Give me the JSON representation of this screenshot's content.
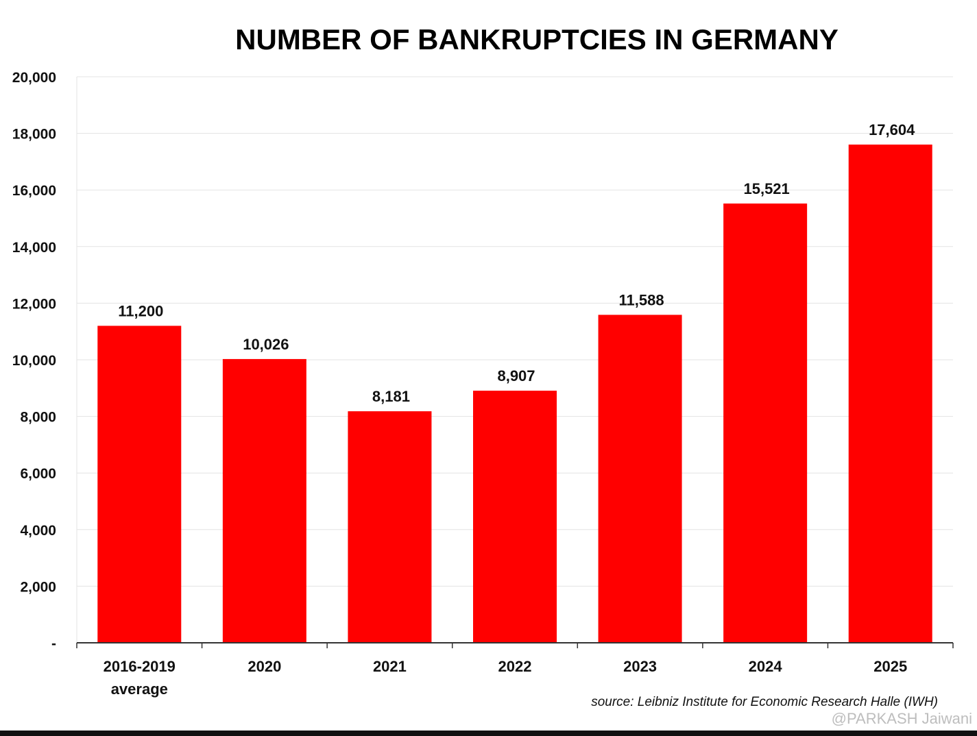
{
  "chart_data": {
    "type": "bar",
    "title": "NUMBER OF BANKRUPTCIES IN GERMANY",
    "xlabel": "",
    "ylabel": "",
    "ylim": [
      0,
      20000
    ],
    "categories": [
      "2016-2019 average",
      "2020",
      "2021",
      "2022",
      "2023",
      "2024",
      "2025"
    ],
    "category_lines": [
      [
        "2016-2019",
        "average"
      ],
      [
        "2020"
      ],
      [
        "2021"
      ],
      [
        "2022"
      ],
      [
        "2023"
      ],
      [
        "2024"
      ],
      [
        "2025"
      ]
    ],
    "values": [
      11200,
      10026,
      8181,
      8907,
      11588,
      15521,
      17604
    ],
    "value_labels": [
      "11,200",
      "10,026",
      "8,181",
      "8,907",
      "11,588",
      "15,521",
      "17,604"
    ],
    "y_ticks": [
      0,
      2000,
      4000,
      6000,
      8000,
      10000,
      12000,
      14000,
      16000,
      18000,
      20000
    ],
    "y_tick_labels": [
      "-",
      "2,000",
      "4,000",
      "6,000",
      "8,000",
      "10,000",
      "12,000",
      "14,000",
      "16,000",
      "18,000",
      "20,000"
    ],
    "grid": true,
    "bar_color": "#ff0000",
    "source": "source: Leibniz Institute for Economic Research Halle (IWH)"
  },
  "watermark": "@PARKASH Jaiwani"
}
